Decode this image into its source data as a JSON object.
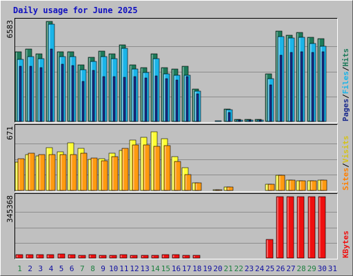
{
  "chart_data": {
    "type": "bar",
    "title": "Daily usage for June 2025",
    "categories": [
      "1",
      "2",
      "3",
      "4",
      "5",
      "6",
      "7",
      "8",
      "9",
      "10",
      "11",
      "12",
      "13",
      "14",
      "15",
      "16",
      "17",
      "18",
      "19",
      "20",
      "21",
      "22",
      "23",
      "24",
      "25",
      "26",
      "27",
      "28",
      "29",
      "30",
      "31"
    ],
    "weekend_days": [
      "1",
      "7",
      "8",
      "14",
      "15",
      "21",
      "22",
      "28",
      "29"
    ],
    "panels": [
      {
        "name": "hits-files-pages",
        "ymax_label": "6583",
        "ylim": [
          0,
          6583
        ],
        "series": [
          {
            "name": "Hits",
            "color": "#1e7a5a",
            "values": [
              4600,
              4780,
              4450,
              6583,
              4580,
              4580,
              3730,
              4230,
              4630,
              4440,
              5030,
              3730,
              3530,
              4430,
              3530,
              3430,
              3630,
              2140,
              0,
              0,
              830,
              140,
              140,
              140,
              3110,
              5940,
              5690,
              5840,
              5530,
              5430,
              0
            ]
          },
          {
            "name": "Files",
            "color": "#1bb4e8",
            "values": [
              4080,
              4280,
              4150,
              6390,
              4270,
              4250,
              3400,
              3950,
              4280,
              4150,
              4800,
              3440,
              3230,
              4130,
              3130,
              3030,
              3030,
              2010,
              0,
              60,
              780,
              110,
              110,
              110,
              2830,
              5590,
              5490,
              5540,
              5140,
              4940,
              0
            ]
          },
          {
            "name": "Pages",
            "color": "#1a2a8c",
            "values": [
              3650,
              3650,
              3560,
              4780,
              3770,
              3680,
              2620,
              3340,
              2960,
              2960,
              2920,
              2930,
              2870,
              3000,
              2820,
              2710,
              2930,
              1800,
              0,
              0,
              570,
              80,
              80,
              80,
              2420,
              4380,
              4560,
              4580,
              4550,
              4590,
              0
            ]
          }
        ]
      },
      {
        "name": "visits-sites",
        "ymax_label": "671",
        "ylim": [
          0,
          671
        ],
        "series": [
          {
            "name": "Visits",
            "color": "#ffff33",
            "values": [
              300,
              380,
              370,
              460,
              410,
              510,
              450,
              330,
              340,
              400,
              430,
              540,
              570,
              630,
              550,
              360,
              240,
              80,
              0,
              10,
              40,
              0,
              0,
              0,
              70,
              160,
              110,
              100,
              100,
              110,
              0
            ],
            "label_color": "#d4c21a"
          },
          {
            "name": "Sites",
            "color": "#ff9a10",
            "values": [
              340,
              400,
              380,
              380,
              380,
              380,
              400,
              350,
              320,
              360,
              450,
              490,
              490,
              470,
              480,
              310,
              170,
              80,
              0,
              10,
              40,
              0,
              0,
              0,
              70,
              160,
              110,
              100,
              100,
              110,
              0
            ],
            "label_color": "#ff8000"
          }
        ]
      },
      {
        "name": "kbytes",
        "ymax_label": "345368",
        "ylim": [
          0,
          345368
        ],
        "series": [
          {
            "name": "KBytes",
            "color": "#ef1010",
            "values": [
              20000,
              20000,
              20000,
              20000,
              23000,
              20000,
              17000,
              20000,
              17000,
              17000,
              19000,
              17000,
              17000,
              17000,
              20000,
              20000,
              17000,
              15000,
              0,
              0,
              0,
              0,
              0,
              0,
              103000,
              345368,
              345368,
              345368,
              345368,
              345368,
              0
            ]
          }
        ]
      }
    ],
    "legend": {
      "placement": "right",
      "separator": "/"
    }
  },
  "colors": {
    "background": "#c0c0c0",
    "panel": "#c0c0c0",
    "title": "#1010c0",
    "axis_text": "#000000",
    "weekend": "#1e8040",
    "weekday": "#1010a0"
  }
}
